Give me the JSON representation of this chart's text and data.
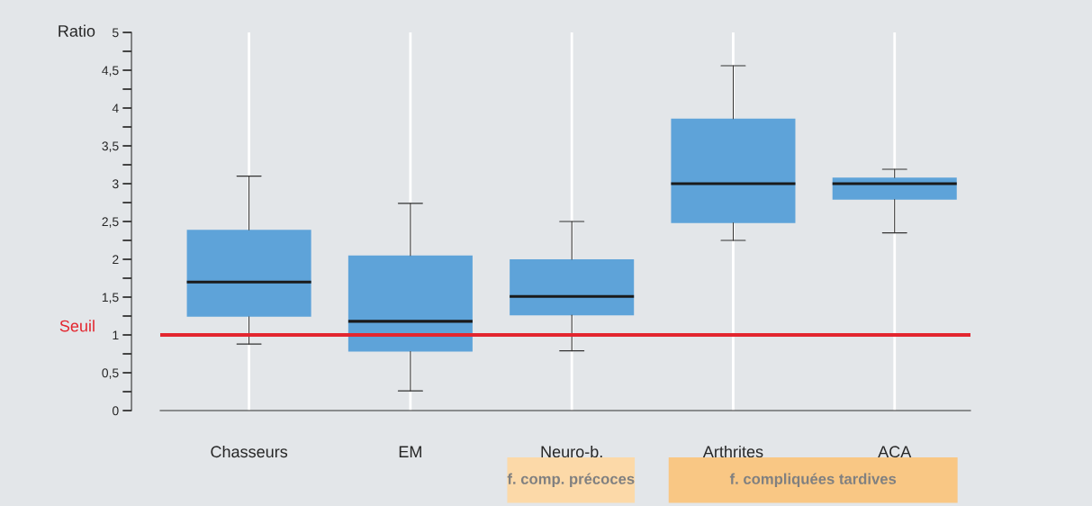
{
  "chart_data": {
    "type": "box",
    "ylabel": "Ratio",
    "categories": [
      "Chasseurs",
      "EM",
      "Neuro-b.",
      "Arthrites",
      "ACA"
    ],
    "boxes": [
      {
        "low": 0.88,
        "q1": 1.24,
        "median": 1.7,
        "q3": 2.39,
        "high": 3.1
      },
      {
        "low": 0.26,
        "q1": 0.78,
        "median": 1.18,
        "q3": 2.05,
        "high": 2.74
      },
      {
        "low": 0.79,
        "q1": 1.26,
        "median": 1.51,
        "q3": 2.0,
        "high": 2.5
      },
      {
        "low": 2.25,
        "q1": 2.48,
        "median": 3.0,
        "q3": 3.86,
        "high": 4.56
      },
      {
        "low": 2.35,
        "q1": 2.79,
        "median": 3.0,
        "q3": 3.08,
        "high": 3.19
      }
    ],
    "color": "#5ea3d9",
    "ylim": [
      0,
      5
    ],
    "yticks": [
      0,
      {
        "value": 0.5,
        "label": "0,5"
      },
      1,
      {
        "value": 1.5,
        "label": "1,5"
      },
      2,
      {
        "value": 2.5,
        "label": "2,5"
      },
      3,
      {
        "value": 3.5,
        "label": "3,5"
      },
      4,
      {
        "value": 4.5,
        "label": "4,5"
      },
      5
    ],
    "grid": "x",
    "ref_lines": [
      {
        "axis": "y",
        "value": 1,
        "label": "Seuil",
        "color": "#e3262f"
      }
    ],
    "annotations": [
      "f. comp. précoces",
      "f. compliquées tardives"
    ]
  }
}
